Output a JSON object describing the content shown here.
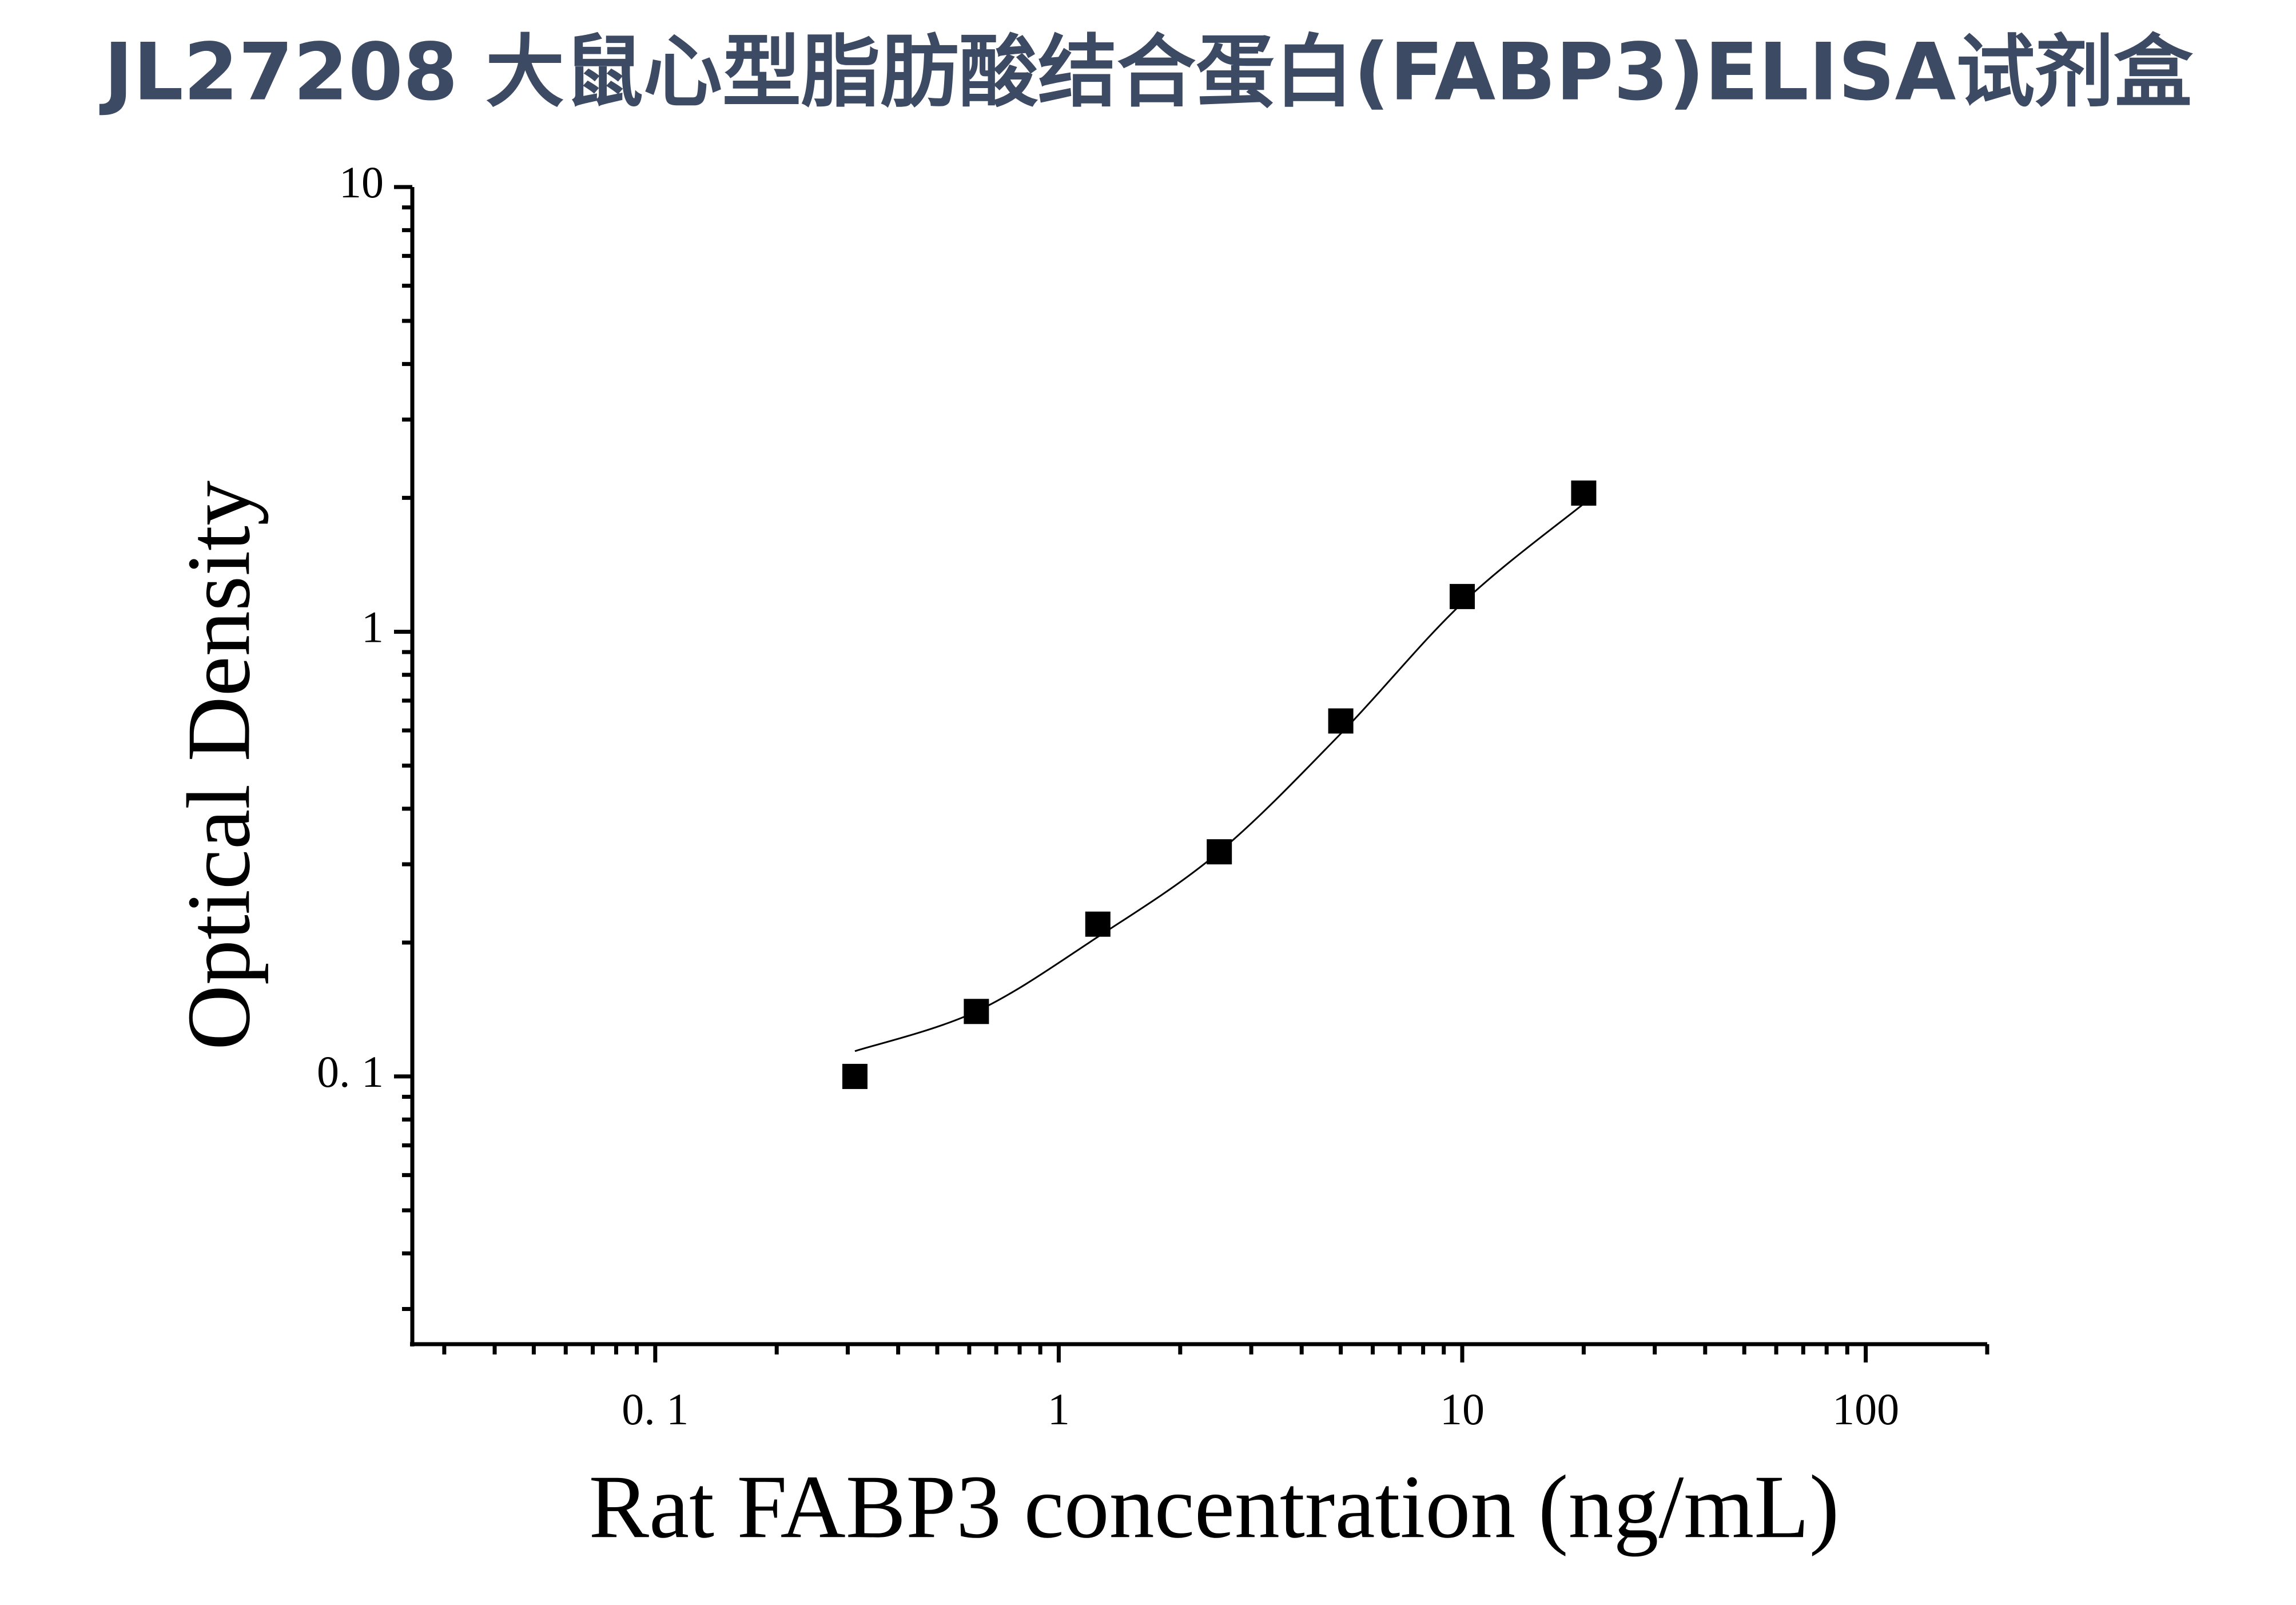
{
  "chart_data": {
    "type": "scatter",
    "title": "JL27208 大鼠心型脂肪酸结合蛋白(FABP3)ELISA试剂盒",
    "x_label": "Rat FABP3 concentration (ng/mL)",
    "y_label": "Optical Density",
    "x_log": true,
    "y_log": true,
    "xlim": [
      0.025,
      200
    ],
    "ylim": [
      0.025,
      10
    ],
    "xticks": [
      {
        "value": 0.1,
        "label": "0. 1"
      },
      1,
      10,
      100
    ],
    "yticks": [
      {
        "value": 0.1,
        "label": "0. 1"
      },
      1,
      10
    ],
    "xminorticks": [
      0.03,
      0.04,
      0.05,
      0.06,
      0.07,
      0.08,
      0.09,
      0.2,
      0.3,
      0.4,
      0.5,
      0.6,
      0.7,
      0.8,
      0.9,
      2,
      3,
      4,
      5,
      6,
      7,
      8,
      9,
      20,
      30,
      40,
      50,
      60,
      70,
      80,
      90,
      200
    ],
    "yminorticks": [
      0.03,
      0.04,
      0.05,
      0.06,
      0.07,
      0.08,
      0.09,
      0.2,
      0.3,
      0.4,
      0.5,
      0.6,
      0.7,
      0.8,
      0.9,
      2,
      3,
      4,
      5,
      6,
      7,
      8,
      9
    ],
    "series": [
      {
        "color": "#000000",
        "marker": "square",
        "x": [
          0.3125,
          0.625,
          1.25,
          2.5,
          5,
          10,
          20
        ],
        "values": [
          0.1,
          0.14,
          0.22,
          0.32,
          0.63,
          1.2,
          2.05
        ]
      },
      {
        "color": "#000000",
        "marker": "line",
        "x": [
          0.3125,
          0.625,
          1.25,
          2.5,
          5,
          10,
          20
        ],
        "values": [
          0.114,
          0.14,
          0.206,
          0.32,
          0.59,
          1.16,
          1.94
        ]
      }
    ]
  }
}
